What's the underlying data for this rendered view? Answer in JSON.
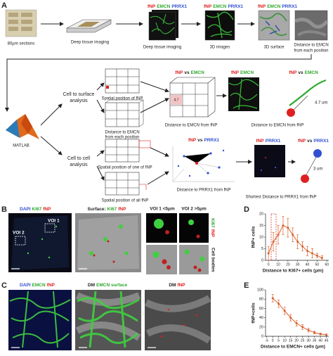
{
  "panel_a": {
    "label": "A",
    "sections": "80μm sections",
    "deep_arrow": "Deep tissue imaging",
    "img1": {
      "header": [
        "fNP",
        "EMCN",
        "PRRX1"
      ],
      "caption": "Deep tissue imaging"
    },
    "img2": {
      "header": [
        "fNP",
        "EMCN",
        "PRRX1"
      ],
      "caption": "3D images"
    },
    "img3": {
      "header": [
        "fNP",
        "EMCN",
        "PRRX1"
      ],
      "caption": "3D surface"
    },
    "img4": {
      "caption": [
        "Distance to EMCN",
        "from each position"
      ]
    },
    "matlab": "MATLAB",
    "surface": {
      "title": [
        "Cell to surface",
        "analysis"
      ],
      "grid1": "Spatial position of fNP",
      "grid2": [
        "Distance to EMCN",
        "from each position"
      ],
      "cube_header": [
        "fNP",
        "vs",
        "EMCN"
      ],
      "cube_value": "4.7",
      "cube_caption": "Distance to EMCN from fNP",
      "img_header": [
        "fNP",
        "EMCN"
      ],
      "img_caption": "Distance to EMCN from fNP",
      "diagram_header": [
        "fNP",
        "vs",
        "EMCN"
      ],
      "distance": "4.7 um"
    },
    "cell": {
      "title": [
        "Cell to cell",
        "analysis"
      ],
      "grid1": "Spatial position of one of fNP",
      "grid2": "Spatial position of all fNP",
      "scatter_header": [
        "fNP",
        "vs",
        "PRRX1"
      ],
      "scatter_caption": "Distance to PRRX1 from fNP",
      "img_header": [
        "fNP",
        "PRRX1"
      ],
      "img_caption": "Shortest Distance to PRRX1 from fNP",
      "diagram_header": [
        "fNP",
        "vs",
        "PRRX1"
      ],
      "distance": "3 um"
    }
  },
  "panel_b": {
    "label": "B",
    "img1_header": [
      "DAPI",
      "KI67",
      "fNP"
    ],
    "voi1": "VOI 1",
    "voi2": "VOI 2",
    "img2_header": [
      "Surface:",
      "KI67",
      "fNP"
    ],
    "zoom1": "VOI 1 <5μm",
    "zoom2": "VOI 2 >5μm",
    "side1": [
      "KI67",
      "fNP"
    ],
    "side2": "Cell bodies"
  },
  "panel_c": {
    "label": "C",
    "img1_header": [
      "DAPI",
      "EMCN",
      "fNP"
    ],
    "img2_header": [
      "DM",
      "EMCN surface"
    ],
    "img3_header": [
      "DM",
      "fNP"
    ]
  },
  "panel_d": {
    "label": "D"
  },
  "panel_e": {
    "label": "E"
  },
  "chart_data": [
    {
      "type": "line",
      "ylabel": "fNP+ cells",
      "xlabel": "Distance to KI67+ cells (μm)",
      "x": [
        0,
        5,
        10,
        15,
        20,
        25,
        30,
        35,
        40,
        45,
        50,
        55
      ],
      "values": [
        3,
        8,
        11,
        15,
        14,
        11,
        8,
        6,
        4,
        3,
        2,
        1
      ],
      "errors": [
        3,
        4,
        4,
        4,
        4,
        3,
        3,
        2,
        2,
        2,
        1,
        1
      ],
      "color": "#d9622b",
      "xlim": [
        -3,
        62
      ],
      "xticks": [
        0,
        10,
        20,
        30,
        40,
        50,
        60
      ],
      "ylim": [
        0,
        20
      ],
      "yticks": [
        0,
        5,
        10,
        15,
        20
      ]
    },
    {
      "type": "line",
      "ylabel": "fNP+cells",
      "xlabel": "Distance to EMCN+ cells (μm)",
      "x": [
        0,
        5,
        10,
        15,
        20,
        25,
        30,
        35,
        40,
        45
      ],
      "values": [
        82,
        70,
        55,
        40,
        28,
        20,
        13,
        8,
        5,
        3
      ],
      "errors": [
        8,
        8,
        8,
        7,
        6,
        5,
        4,
        3,
        2,
        2
      ],
      "color": "#d9622b",
      "xlim": [
        -6,
        47
      ],
      "xticks": [
        -5,
        0,
        5,
        10,
        15,
        20,
        25,
        30,
        35,
        40,
        45
      ],
      "ylim": [
        0,
        100
      ],
      "yticks": [
        0,
        20,
        40,
        60,
        80,
        100
      ]
    }
  ]
}
